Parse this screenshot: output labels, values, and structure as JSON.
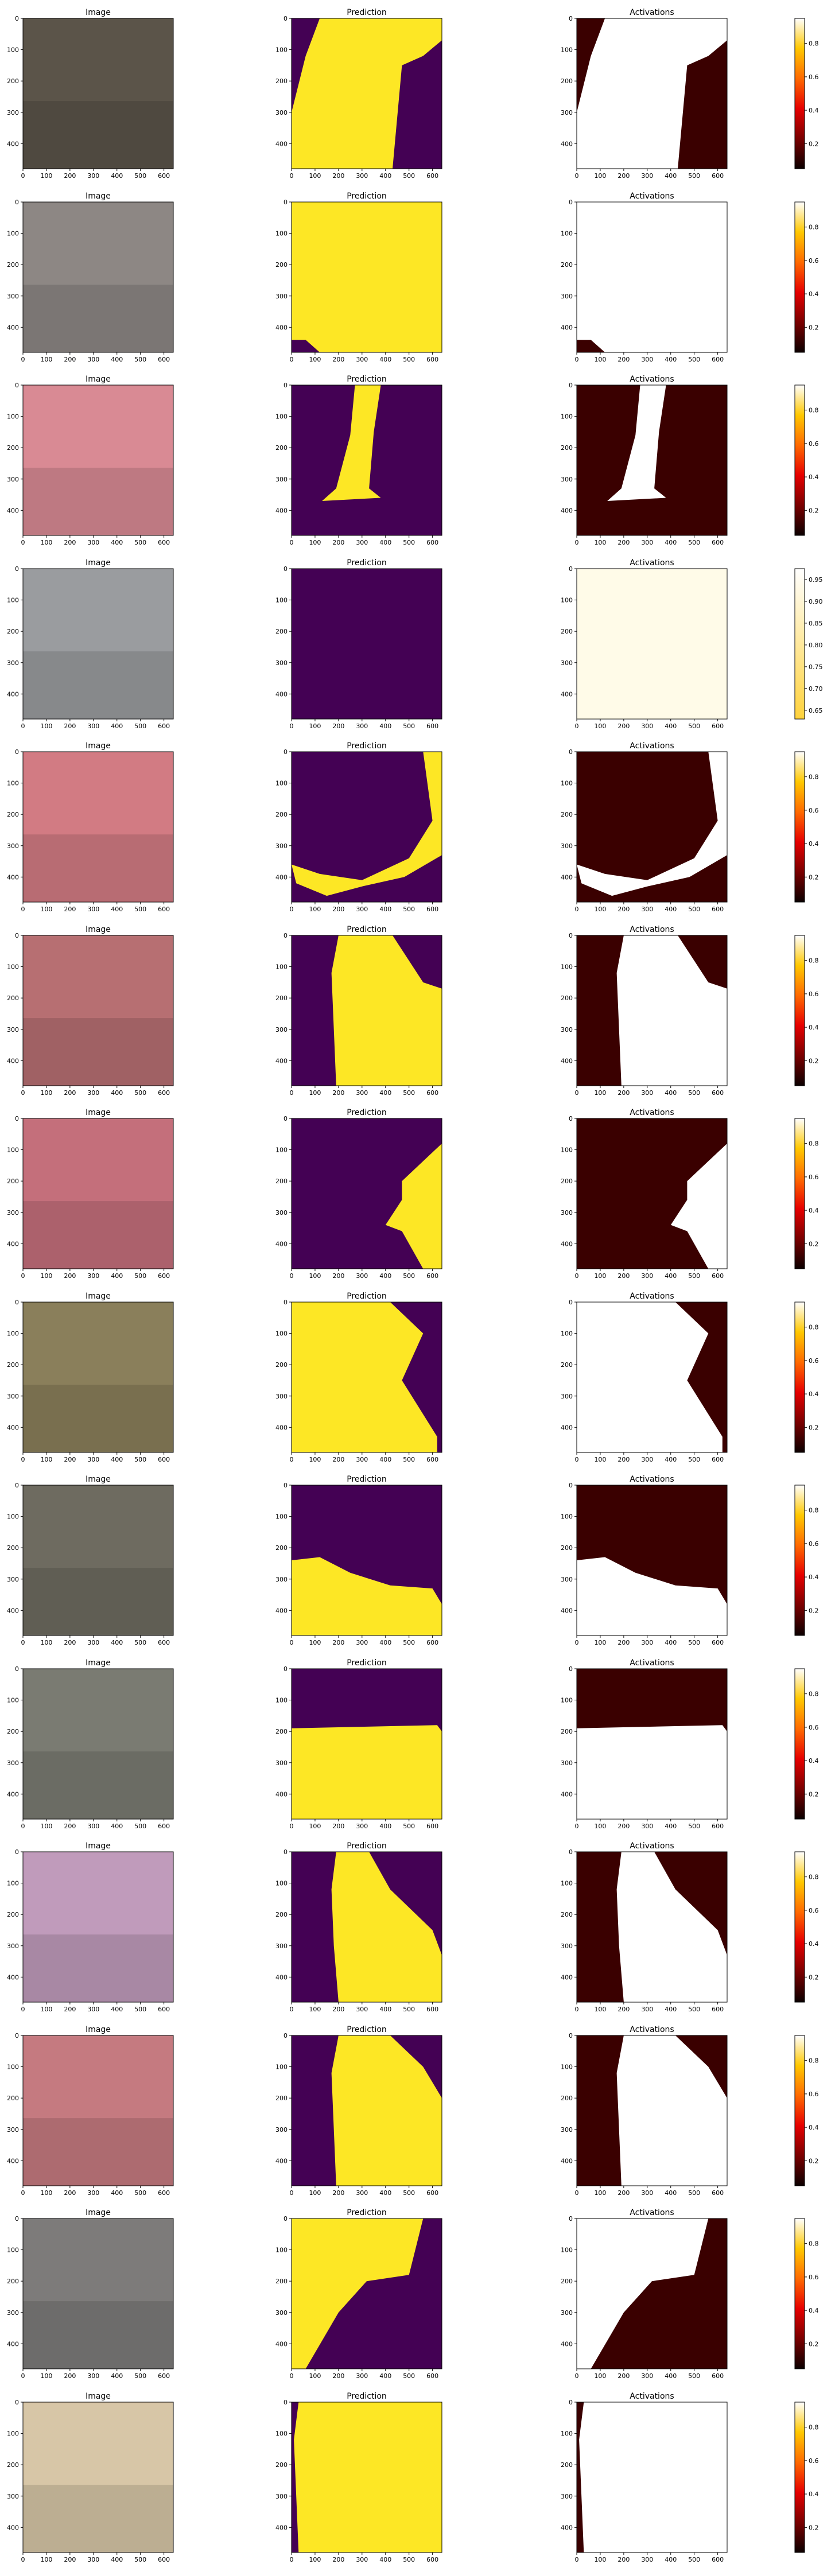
{
  "chart_data": {
    "type": "image-grid",
    "panel_titles": [
      "Image",
      "Prediction",
      "Activations"
    ],
    "x_ticks": [
      0,
      100,
      200,
      300,
      400,
      500,
      600
    ],
    "y_ticks": [
      0,
      100,
      200,
      300,
      400
    ],
    "xlim": [
      0,
      640
    ],
    "ylim": [
      480,
      0
    ],
    "colormaps": {
      "prediction": "viridis",
      "activations": "hot"
    },
    "palette": {
      "pred_off": "#440154",
      "pred_on": "#fde725",
      "hot": [
        "#0b0000",
        "#7a0000",
        "#e60000",
        "#ff6a00",
        "#ffc800",
        "#ffffff"
      ]
    },
    "rows": [
      {
        "row": 1,
        "image_tint": "#5b5449",
        "colorbar_ticks": [
          "0.2",
          "0.4",
          "0.6",
          "0.8"
        ]
      },
      {
        "row": 2,
        "image_tint": "#8d8784",
        "colorbar_ticks": [
          "0.2",
          "0.4",
          "0.6",
          "0.8"
        ]
      },
      {
        "row": 3,
        "image_tint": "#d98a94",
        "colorbar_ticks": [
          "0.2",
          "0.4",
          "0.6",
          "0.8"
        ]
      },
      {
        "row": 4,
        "image_tint": "#9a9c9f",
        "colorbar_ticks": [
          "0.65",
          "0.70",
          "0.75",
          "0.80",
          "0.85",
          "0.90",
          "0.95"
        ]
      },
      {
        "row": 5,
        "image_tint": "#d27b83",
        "colorbar_ticks": [
          "0.2",
          "0.4",
          "0.6",
          "0.8"
        ]
      },
      {
        "row": 6,
        "image_tint": "#b76f72",
        "colorbar_ticks": [
          "0.2",
          "0.4",
          "0.6",
          "0.8"
        ]
      },
      {
        "row": 7,
        "image_tint": "#c46f7b",
        "colorbar_ticks": [
          "0.2",
          "0.4",
          "0.6",
          "0.8"
        ]
      },
      {
        "row": 8,
        "image_tint": "#8a7f5b",
        "colorbar_ticks": [
          "0.2",
          "0.4",
          "0.6",
          "0.8"
        ]
      },
      {
        "row": 9,
        "image_tint": "#6e6b60",
        "colorbar_ticks": [
          "0.2",
          "0.4",
          "0.6",
          "0.8"
        ]
      },
      {
        "row": 10,
        "image_tint": "#7a7b72",
        "colorbar_ticks": [
          "0.2",
          "0.4",
          "0.6",
          "0.8"
        ]
      },
      {
        "row": 11,
        "image_tint": "#c09bbb",
        "colorbar_ticks": [
          "0.2",
          "0.4",
          "0.6",
          "0.8"
        ]
      },
      {
        "row": 12,
        "image_tint": "#c57a80",
        "colorbar_ticks": [
          "0.2",
          "0.4",
          "0.6",
          "0.8"
        ]
      },
      {
        "row": 13,
        "image_tint": "#7d7b7a",
        "colorbar_ticks": [
          "0.2",
          "0.4",
          "0.6",
          "0.8"
        ]
      },
      {
        "row": 14,
        "image_tint": "#d7c6a7",
        "colorbar_ticks": [
          "0.2",
          "0.4",
          "0.6",
          "0.8"
        ]
      }
    ]
  }
}
